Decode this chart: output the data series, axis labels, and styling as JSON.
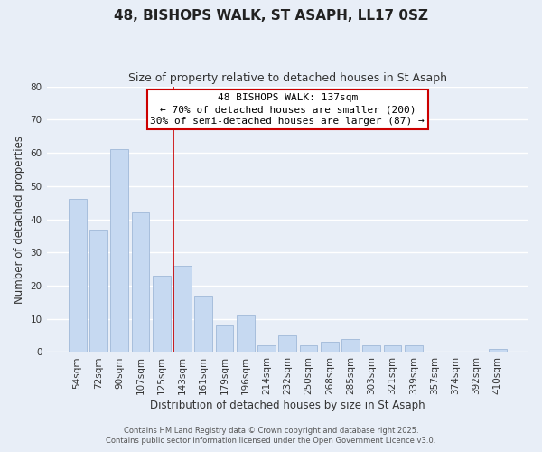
{
  "title": "48, BISHOPS WALK, ST ASAPH, LL17 0SZ",
  "subtitle": "Size of property relative to detached houses in St Asaph",
  "xlabel": "Distribution of detached houses by size in St Asaph",
  "ylabel": "Number of detached properties",
  "bar_color": "#c6d9f1",
  "bar_edgecolor": "#a0b8d8",
  "background_color": "#e8eef7",
  "grid_color": "#ffffff",
  "categories": [
    "54sqm",
    "72sqm",
    "90sqm",
    "107sqm",
    "125sqm",
    "143sqm",
    "161sqm",
    "179sqm",
    "196sqm",
    "214sqm",
    "232sqm",
    "250sqm",
    "268sqm",
    "285sqm",
    "303sqm",
    "321sqm",
    "339sqm",
    "357sqm",
    "374sqm",
    "392sqm",
    "410sqm"
  ],
  "values": [
    46,
    37,
    61,
    42,
    23,
    26,
    17,
    8,
    11,
    2,
    5,
    2,
    3,
    4,
    2,
    2,
    2,
    0,
    0,
    0,
    1
  ],
  "ylim": [
    0,
    80
  ],
  "yticks": [
    0,
    10,
    20,
    30,
    40,
    50,
    60,
    70,
    80
  ],
  "property_line_index": 5,
  "property_line_label": "48 BISHOPS WALK: 137sqm",
  "annotation_line1": "← 70% of detached houses are smaller (200)",
  "annotation_line2": "30% of semi-detached houses are larger (87) →",
  "annotation_box_color": "#ffffff",
  "annotation_box_edgecolor": "#cc0000",
  "vline_color": "#cc0000",
  "footer_line1": "Contains HM Land Registry data © Crown copyright and database right 2025.",
  "footer_line2": "Contains public sector information licensed under the Open Government Licence v3.0.",
  "title_fontsize": 11,
  "subtitle_fontsize": 9,
  "axis_label_fontsize": 8.5,
  "tick_fontsize": 7.5,
  "annotation_fontsize": 8,
  "footer_fontsize": 6
}
